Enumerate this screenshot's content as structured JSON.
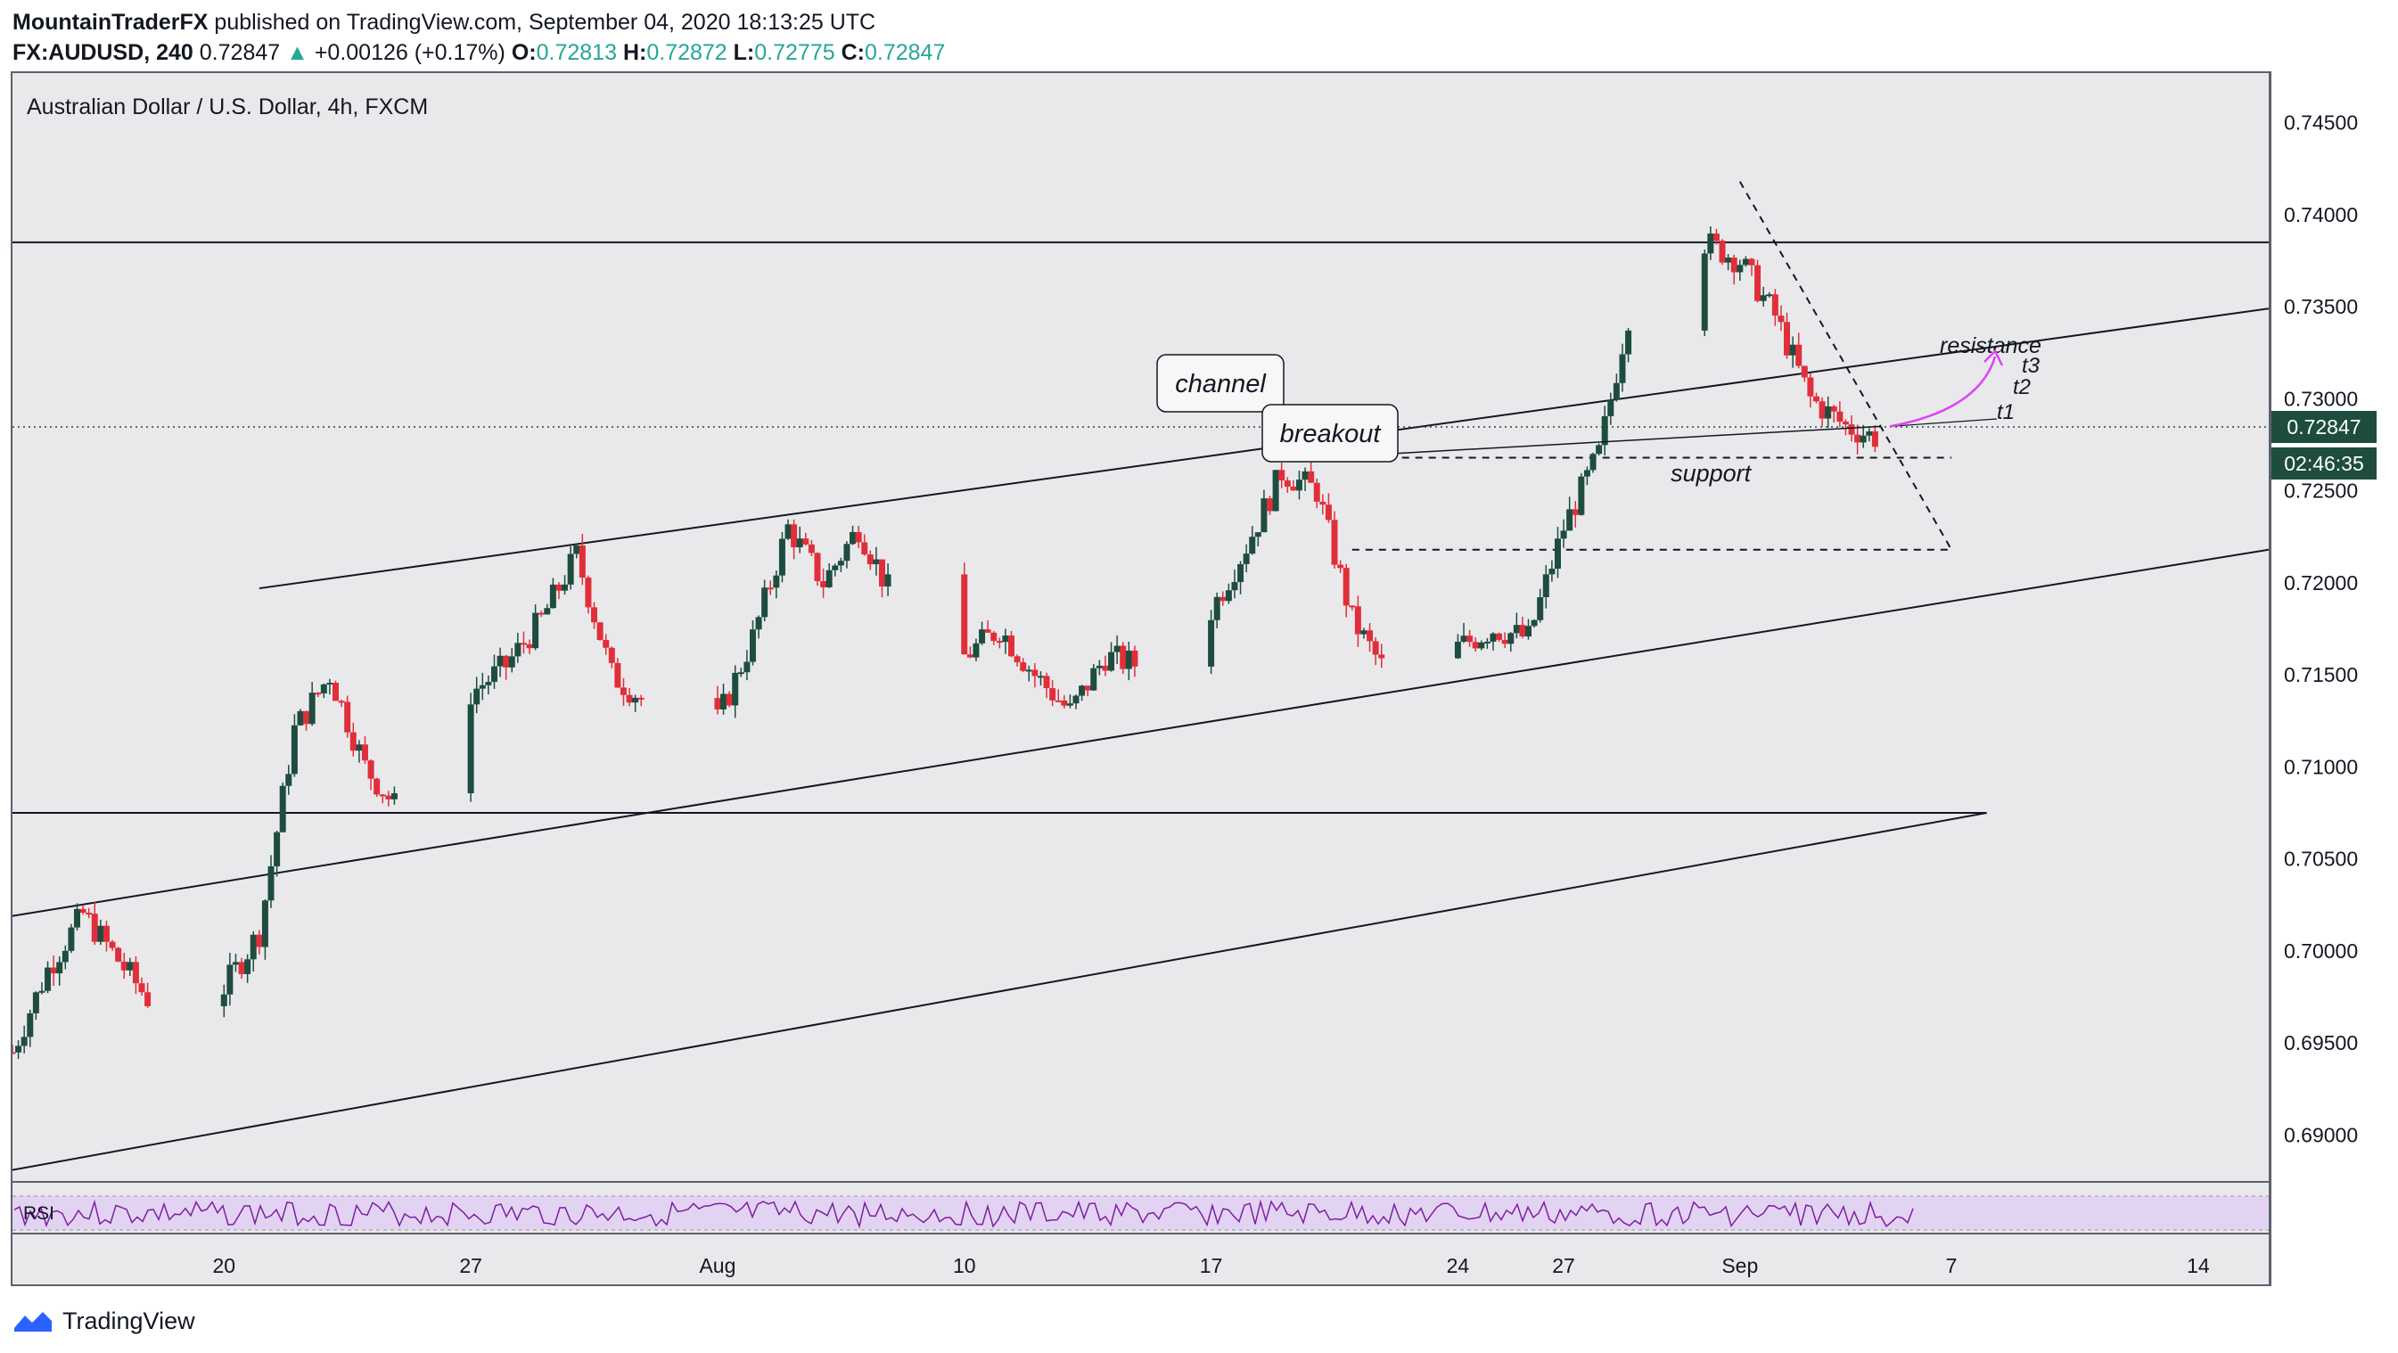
{
  "header": {
    "author": "MountainTraderFX",
    "published_text": " published on TradingView.com, September 04, 2020 18:13:25 UTC",
    "symbol": "FX:AUDUSD, 240",
    "last": "0.72847",
    "change": "+0.00126 (+0.17%)",
    "o_label": "O:",
    "o_value": "0.72813",
    "h_label": "H:",
    "h_value": "0.72872",
    "l_label": "L:",
    "l_value": "0.72775",
    "c_label": "C:",
    "c_value": "0.72847"
  },
  "chart_data": {
    "type": "candlestick",
    "title": "Australian Dollar / U.S. Dollar, 4h, FXCM",
    "ylim": [
      0.6875,
      0.7475
    ],
    "y_ticks": [
      "0.74500",
      "0.74000",
      "0.73500",
      "0.73000",
      "0.72500",
      "0.72000",
      "0.71500",
      "0.71000",
      "0.70500",
      "0.70000",
      "0.69500",
      "0.69000"
    ],
    "x_ticks": [
      {
        "label": "20",
        "t": "2020-07-20"
      },
      {
        "label": "27",
        "t": "2020-07-27"
      },
      {
        "label": "Aug",
        "t": "2020-08-03"
      },
      {
        "label": "10",
        "t": "2020-08-10"
      },
      {
        "label": "17",
        "t": "2020-08-17"
      },
      {
        "label": "24",
        "t": "2020-08-24"
      },
      {
        "label": "27",
        "t": "2020-08-27"
      },
      {
        "label": "Sep",
        "t": "2020-09-01"
      },
      {
        "label": "7",
        "t": "2020-09-07"
      },
      {
        "label": "14",
        "t": "2020-09-14"
      }
    ],
    "x_range": [
      "2020-07-14",
      "2020-09-16"
    ],
    "close_path": [
      [
        "2020-07-14",
        0.6945
      ],
      [
        "2020-07-15",
        0.699
      ],
      [
        "2020-07-16",
        0.702
      ],
      [
        "2020-07-17",
        0.6995
      ],
      [
        "2020-07-18",
        0.697
      ],
      [
        "2020-07-19",
        0.6985
      ],
      [
        "2020-07-20",
        0.698
      ],
      [
        "2020-07-21",
        0.701
      ],
      [
        "2020-07-22",
        0.712
      ],
      [
        "2020-07-23",
        0.715
      ],
      [
        "2020-07-24",
        0.71
      ],
      [
        "2020-07-25",
        0.7075
      ],
      [
        "2020-07-26",
        0.71
      ],
      [
        "2020-07-27",
        0.714
      ],
      [
        "2020-07-28",
        0.7155
      ],
      [
        "2020-07-29",
        0.718
      ],
      [
        "2020-07-30",
        0.7215
      ],
      [
        "2020-07-31",
        0.715
      ],
      [
        "2020-08-01",
        0.7135
      ],
      [
        "2020-08-02",
        0.71
      ],
      [
        "2020-08-03",
        0.7125
      ],
      [
        "2020-08-04",
        0.717
      ],
      [
        "2020-08-05",
        0.723
      ],
      [
        "2020-08-06",
        0.72
      ],
      [
        "2020-08-07",
        0.723
      ],
      [
        "2020-08-08",
        0.719
      ],
      [
        "2020-08-09",
        0.716
      ],
      [
        "2020-08-10",
        0.716
      ],
      [
        "2020-08-11",
        0.7175
      ],
      [
        "2020-08-12",
        0.715
      ],
      [
        "2020-08-13",
        0.713
      ],
      [
        "2020-08-14",
        0.716
      ],
      [
        "2020-08-15",
        0.7155
      ],
      [
        "2020-08-16",
        0.7165
      ],
      [
        "2020-08-17",
        0.7185
      ],
      [
        "2020-08-18",
        0.722
      ],
      [
        "2020-08-19",
        0.726
      ],
      [
        "2020-08-20",
        0.725
      ],
      [
        "2020-08-21",
        0.718
      ],
      [
        "2020-08-22",
        0.715
      ],
      [
        "2020-08-23",
        0.721
      ],
      [
        "2020-08-24",
        0.7165
      ],
      [
        "2020-08-25",
        0.7175
      ],
      [
        "2020-08-26",
        0.717
      ],
      [
        "2020-08-27",
        0.723
      ],
      [
        "2020-08-28",
        0.727
      ],
      [
        "2020-08-29",
        0.736
      ],
      [
        "2020-08-30",
        0.737
      ],
      [
        "2020-08-31",
        0.7385
      ],
      [
        "2020-09-01",
        0.7375
      ],
      [
        "2020-09-02",
        0.7345
      ],
      [
        "2020-09-03",
        0.73
      ],
      [
        "2020-09-04",
        0.7285
      ],
      [
        "2020-09-05",
        0.7278
      ]
    ],
    "last_price": {
      "value": "0.72847",
      "y": 0.72847
    },
    "countdown": {
      "value": "02:46:35",
      "y": 0.7265
    },
    "horizontal_levels": [
      {
        "y": 0.7385,
        "from": "2020-07-14",
        "to": "2020-09-16"
      },
      {
        "y": 0.7075,
        "from": "2020-07-14",
        "to": "2020-09-08"
      }
    ],
    "trendlines": [
      {
        "name": "channel-top",
        "from": [
          "2020-07-21",
          0.7197
        ],
        "to": [
          "2020-09-16",
          0.7349
        ]
      },
      {
        "name": "channel-bottom",
        "from": [
          "2020-07-14",
          0.7019
        ],
        "to": [
          "2020-09-16",
          0.7218
        ]
      },
      {
        "name": "lower-line",
        "from": [
          "2020-07-14",
          0.6881
        ],
        "to": [
          "2020-09-08",
          0.7075
        ]
      },
      {
        "name": "down-trend",
        "from": [
          "2020-09-01",
          0.7418
        ],
        "to": [
          "2020-09-07",
          0.7218
        ],
        "dashed": true
      }
    ],
    "dashed_levels": [
      {
        "y": 0.7268,
        "from": "2020-08-19",
        "to": "2020-09-07"
      },
      {
        "y": 0.7218,
        "from": "2020-08-21",
        "to": "2020-09-07"
      }
    ],
    "annotations": {
      "channel": "channel",
      "breakout": "breakout",
      "support": "support",
      "resistance": "resistance",
      "t1": "t1",
      "t2": "t2",
      "t3": "t3"
    },
    "rsi_label": "RSI"
  },
  "footer": {
    "brand": "TradingView"
  }
}
